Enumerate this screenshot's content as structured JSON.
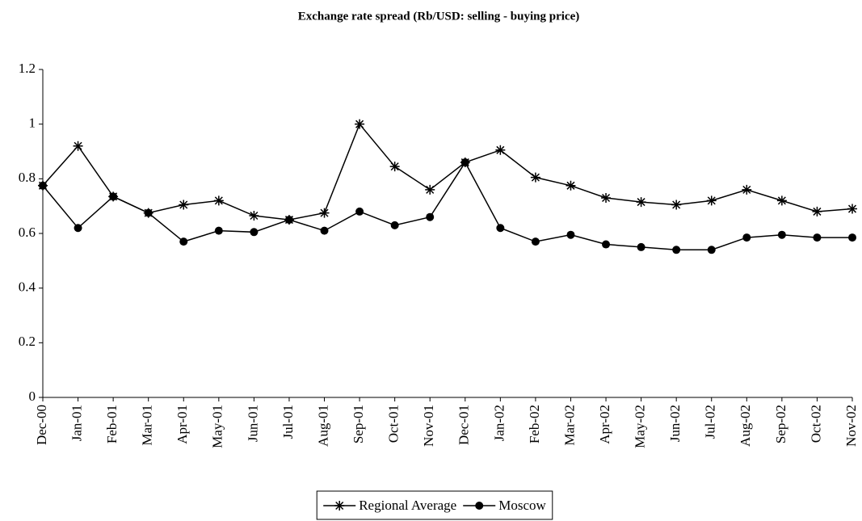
{
  "chart_data": {
    "type": "line",
    "title": "Exchange rate spread (Rb/USD: selling - buying price)",
    "categories": [
      "Dec-00",
      "Jan-01",
      "Feb-01",
      "Mar-01",
      "Apr-01",
      "May-01",
      "Jun-01",
      "Jul-01",
      "Aug-01",
      "Sep-01",
      "Oct-01",
      "Nov-01",
      "Dec-01",
      "Jan-02",
      "Feb-02",
      "Mar-02",
      "Apr-02",
      "May-02",
      "Jun-02",
      "Jul-02",
      "Aug-02",
      "Sep-02",
      "Oct-02",
      "Nov-02"
    ],
    "series": [
      {
        "name": "Regional Average",
        "color": "#000000",
        "marker": "star",
        "values": [
          0.775,
          0.92,
          0.735,
          0.675,
          0.705,
          0.72,
          0.665,
          0.65,
          0.675,
          1.0,
          0.845,
          0.76,
          0.86,
          0.905,
          0.805,
          0.775,
          0.73,
          0.715,
          0.705,
          0.72,
          0.76,
          0.72,
          0.68,
          0.69
        ]
      },
      {
        "name": "Moscow",
        "color": "#000000",
        "marker": "circle",
        "values": [
          0.775,
          0.62,
          0.735,
          0.675,
          0.57,
          0.61,
          0.605,
          0.65,
          0.61,
          0.68,
          0.63,
          0.66,
          0.86,
          0.62,
          0.57,
          0.595,
          0.56,
          0.55,
          0.54,
          0.54,
          0.585,
          0.595,
          0.585,
          0.585
        ]
      }
    ],
    "ylim": [
      0,
      1.2
    ],
    "yticks": [
      0,
      0.2,
      0.4,
      0.6,
      0.8,
      1,
      1.2
    ],
    "grid": false,
    "legend": "bottom"
  }
}
